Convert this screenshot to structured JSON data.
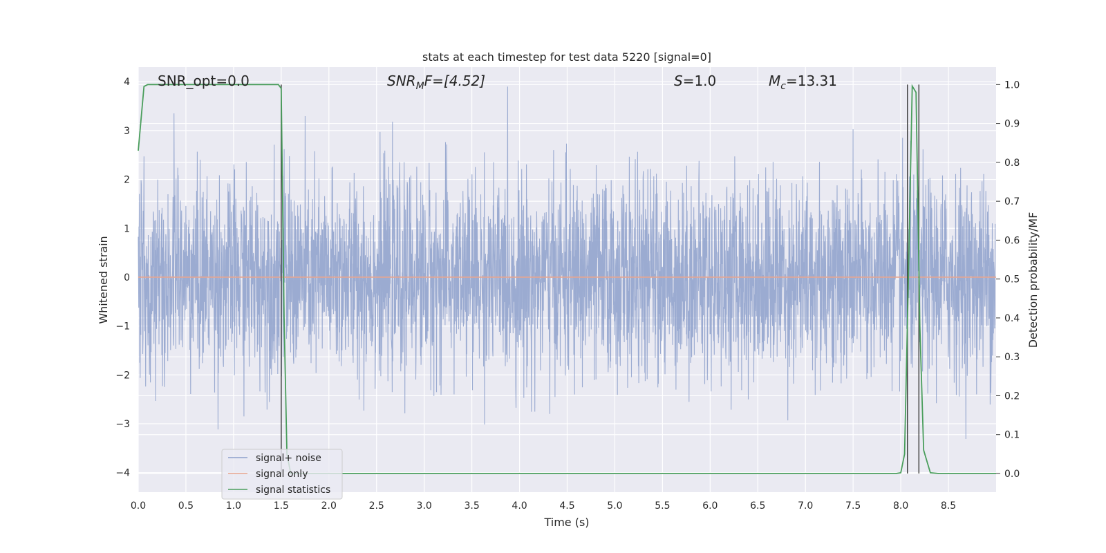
{
  "chart_data": {
    "type": "line",
    "title": "stats at each timestep for test data 5220 [signal=0]",
    "xlabel": "Time (s)",
    "ylabel": "Whitened strain",
    "ylabel_right": "Detection probability/MF",
    "xlim": [
      0.0,
      9.0
    ],
    "ylim": [
      -4.4,
      4.3
    ],
    "ylim_right": [
      -0.048,
      1.045
    ],
    "x_ticks": [
      "0.0",
      "0.5",
      "1.0",
      "1.5",
      "2.0",
      "2.5",
      "3.0",
      "3.5",
      "4.0",
      "4.5",
      "5.0",
      "5.5",
      "6.0",
      "6.5",
      "7.0",
      "7.5",
      "8.0",
      "8.5"
    ],
    "y_ticks": [
      "−4",
      "−3",
      "−2",
      "−1",
      "0",
      "1",
      "2",
      "3",
      "4"
    ],
    "y_right_ticks": [
      "0.0",
      "0.1",
      "0.2",
      "0.3",
      "0.4",
      "0.5",
      "0.6",
      "0.7",
      "0.8",
      "0.9",
      "1.0"
    ],
    "grid": true,
    "legend_placement": "lower-left",
    "annotations": {
      "snr_opt": "SNR_opt=0.0",
      "snr_mf_sym": "SNR",
      "snr_mf_sub": "M",
      "snr_mf_rest": "F=[4.52]",
      "s_sym": "S",
      "s_rest": "=1.0",
      "mc_sym": "M",
      "mc_sub": "c",
      "mc_rest": "=13.31"
    },
    "series": [
      {
        "name": "signal+ noise",
        "color": "#8da0cb",
        "kind": "noise",
        "sigma": 0.95,
        "sample_rate_hz": 2048,
        "y_range": [
          -4.0,
          3.9
        ]
      },
      {
        "name": "signal only",
        "color": "#e8a58f",
        "kind": "constant",
        "value": 0.0
      },
      {
        "name": "signal statistics",
        "color": "#4a9e5c",
        "axis": "right",
        "x": [
          0.0,
          0.06,
          0.1,
          0.2,
          0.5,
          1.0,
          1.4,
          1.47,
          1.5,
          1.53,
          1.56,
          1.6,
          2.0,
          3.0,
          4.0,
          5.0,
          6.0,
          7.0,
          7.5,
          7.95,
          8.0,
          8.04,
          8.08,
          8.12,
          8.16,
          8.2,
          8.24,
          8.31,
          8.4,
          8.6,
          8.8,
          9.0
        ],
        "y": [
          0.83,
          0.995,
          1.0,
          1.0,
          1.0,
          1.0,
          1.0,
          1.0,
          0.99,
          0.4,
          0.05,
          0.0,
          0.0,
          0.0,
          0.0,
          0.0,
          0.0,
          0.0,
          0.0,
          0.0,
          0.002,
          0.05,
          0.5,
          0.996,
          0.98,
          0.38,
          0.06,
          0.002,
          0.0,
          0.0,
          0.0,
          0.0
        ]
      }
    ],
    "vertical_lines_x": [
      1.5,
      8.07,
      8.19
    ]
  }
}
